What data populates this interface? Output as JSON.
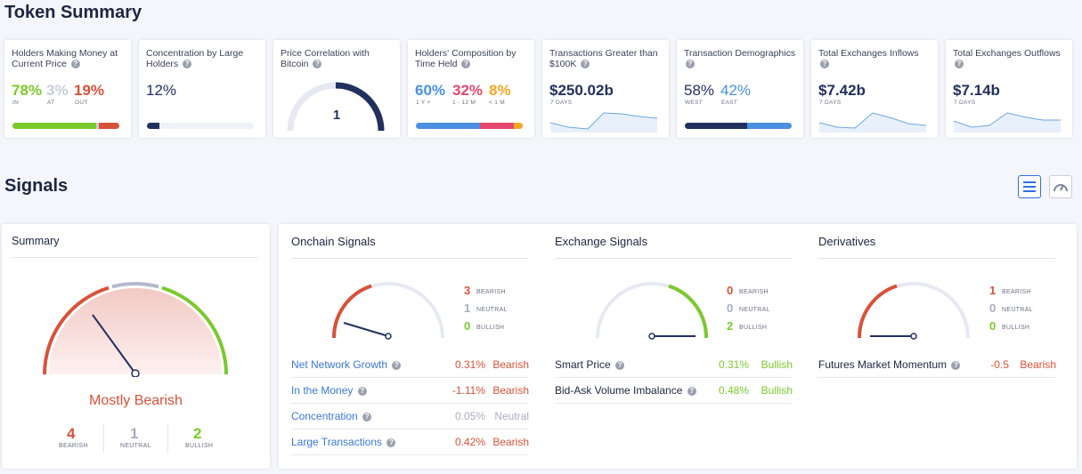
{
  "token_summary": {
    "title": "Token Summary",
    "cards": {
      "holders_money": {
        "label": "Holders Making Money at Current Price",
        "in": "78%",
        "at": "3%",
        "out": "19%",
        "in_lbl": "IN",
        "at_lbl": "AT",
        "out_lbl": "OUT",
        "in_frac": 0.78,
        "at_frac": 0.03,
        "out_frac": 0.19
      },
      "concentration": {
        "label": "Concentration by Large Holders",
        "value": "12%",
        "frac": 0.12
      },
      "price_correlation": {
        "label": "Price Correlation with Bitcoin",
        "value": "1"
      },
      "holders_composition": {
        "label": "Holders' Composition by Time Held",
        "v1": "60%",
        "v2": "32%",
        "v3": "8%",
        "l1": "1 Y +",
        "l2": "1 - 12 M",
        "l3": "< 1 M"
      },
      "tx_greater": {
        "label": "Transactions Greater than $100K",
        "value": "$250.02b",
        "period": "7 DAYS"
      },
      "tx_demographics": {
        "label": "Transaction Demographics",
        "west": "58%",
        "east": "42%",
        "west_lbl": "WEST",
        "east_lbl": "EAST"
      },
      "exchange_inflows": {
        "label": "Total Exchanges Inflows",
        "value": "$7.42b",
        "period": "7 DAYS"
      },
      "exchange_outflows": {
        "label": "Total Exchanges Outflows",
        "value": "$7.14b",
        "period": "7 DAYS"
      }
    }
  },
  "signals": {
    "title": "Signals",
    "summary": {
      "title": "Summary",
      "verdict": "Mostly Bearish",
      "bearish": "4",
      "neutral": "1",
      "bullish": "2",
      "bearish_lbl": "BEARISH",
      "neutral_lbl": "NEUTRAL",
      "bullish_lbl": "BULLISH"
    },
    "onchain": {
      "title": "Onchain Signals",
      "bearish": "3",
      "neutral": "1",
      "bullish": "0",
      "bearish_lbl": "BEARISH",
      "neutral_lbl": "NEUTRAL",
      "bullish_lbl": "BULLISH",
      "rows": [
        {
          "name": "Net Network Growth",
          "value": "0.31%",
          "signal": "Bearish"
        },
        {
          "name": "In the Money",
          "value": "-1.11%",
          "signal": "Bearish"
        },
        {
          "name": "Concentration",
          "value": "0.05%",
          "signal": "Neutral"
        },
        {
          "name": "Large Transactions",
          "value": "0.42%",
          "signal": "Bearish"
        }
      ]
    },
    "exchange": {
      "title": "Exchange Signals",
      "bearish": "0",
      "neutral": "0",
      "bullish": "2",
      "bearish_lbl": "BEARISH",
      "neutral_lbl": "NEUTRAL",
      "bullish_lbl": "BULLISH",
      "rows": [
        {
          "name": "Smart Price",
          "value": "0.31%",
          "signal": "Bullish"
        },
        {
          "name": "Bid-Ask Volume Imbalance",
          "value": "0.48%",
          "signal": "Bullish"
        }
      ]
    },
    "derivatives": {
      "title": "Derivatives",
      "bearish": "1",
      "neutral": "0",
      "bullish": "0",
      "bearish_lbl": "BEARISH",
      "neutral_lbl": "NEUTRAL",
      "bullish_lbl": "BULLISH",
      "rows": [
        {
          "name": "Futures Market Momentum",
          "value": "-0.5",
          "signal": "Bearish"
        }
      ]
    }
  },
  "icons": {
    "help": "?",
    "list_view": "list-icon",
    "gauge_view": "gauge-icon"
  },
  "colors": {
    "bearish": "#d8523a",
    "neutral": "#a7adc0",
    "bullish": "#7bc92c",
    "accent": "#2f6fde",
    "navy": "#22305f"
  }
}
